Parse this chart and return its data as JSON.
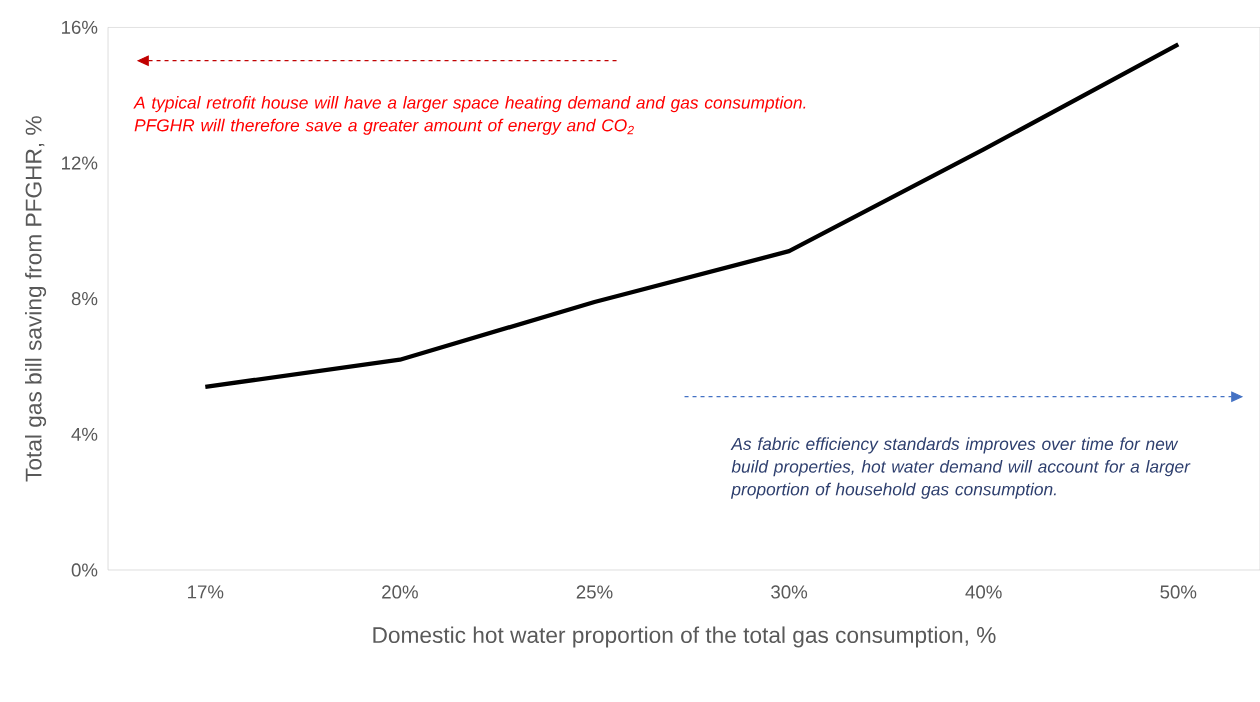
{
  "chart_data": {
    "type": "line",
    "xlabel": "Domestic hot water proportion of the total gas consumption, %",
    "ylabel": "Total gas bill saving from PFGHR, %",
    "categories": [
      "17%",
      "20%",
      "25%",
      "30%",
      "40%",
      "50%"
    ],
    "series": [
      {
        "color": "#000000",
        "values": [
          5.4,
          6.2,
          7.9,
          9.4,
          12.4,
          15.5
        ]
      }
    ],
    "ylim": [
      0,
      16
    ],
    "yticks": [
      {
        "value": 0,
        "label": "0%"
      },
      {
        "value": 4,
        "label": "4%"
      },
      {
        "value": 8,
        "label": "8%"
      },
      {
        "value": 12,
        "label": "12%"
      },
      {
        "value": 16,
        "label": "16%"
      }
    ],
    "annotations": [
      "A typical retrofit house will have a larger space heating demand and gas consumption. PFGHR will therefore save a greater amount of energy and CO$_{2}$",
      "As fabric efficiency standards improves over time for new build properties, hot water demand will account for a larger proportion of household gas consumption."
    ],
    "grid": false,
    "legend": false,
    "marker": "none",
    "line_style": "solid"
  }
}
